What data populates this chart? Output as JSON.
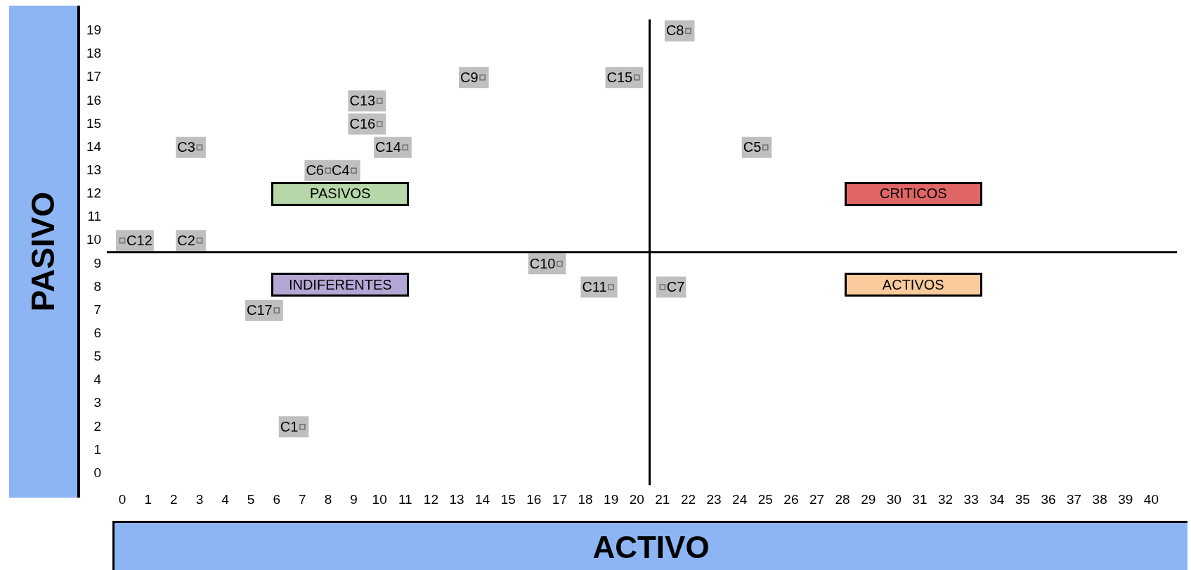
{
  "chart_data": {
    "type": "scatter",
    "xlabel": "ACTIVO",
    "ylabel": "PASIVO",
    "series": [
      {
        "color": "#bfbfbf",
        "x": [
          7,
          3,
          3,
          9,
          25,
          8,
          21,
          22,
          14,
          17,
          19,
          0,
          10,
          11,
          20,
          10,
          6
        ],
        "values": [
          2,
          10,
          14,
          13,
          14,
          13,
          8,
          19,
          17,
          9,
          8,
          10,
          16,
          14,
          17,
          15,
          7
        ],
        "value_labels": [
          "C1",
          "C2",
          "C3",
          "C4",
          "C5",
          "C6",
          "C7",
          "C8",
          "C9",
          "C10",
          "C11",
          "C12",
          "C13",
          "C14",
          "C15",
          "C16",
          "C17"
        ]
      }
    ],
    "marker": "square",
    "legend": false,
    "grid": false,
    "xlim": [
      -0.6,
      41
    ],
    "xticks": [
      0,
      1,
      2,
      3,
      4,
      5,
      6,
      7,
      8,
      9,
      10,
      11,
      12,
      13,
      14,
      15,
      16,
      17,
      18,
      19,
      20,
      21,
      22,
      23,
      24,
      25,
      26,
      27,
      28,
      29,
      30,
      31,
      32,
      33,
      34,
      35,
      36,
      37,
      38,
      39,
      40
    ],
    "ylim": [
      -0.5,
      19.5
    ],
    "yticks": [
      0,
      1,
      2,
      3,
      4,
      5,
      6,
      7,
      8,
      9,
      10,
      11,
      12,
      13,
      14,
      15,
      16,
      17,
      18,
      19
    ],
    "ref_lines": [
      {
        "axis": "x",
        "value": 20.5,
        "color": "#000000"
      },
      {
        "axis": "y",
        "value": 9.5,
        "color": "#000000"
      }
    ],
    "annotations": [
      "PASIVOS",
      "CRITICOS",
      "INDIFERENTES",
      "ACTIVOS"
    ]
  }
}
